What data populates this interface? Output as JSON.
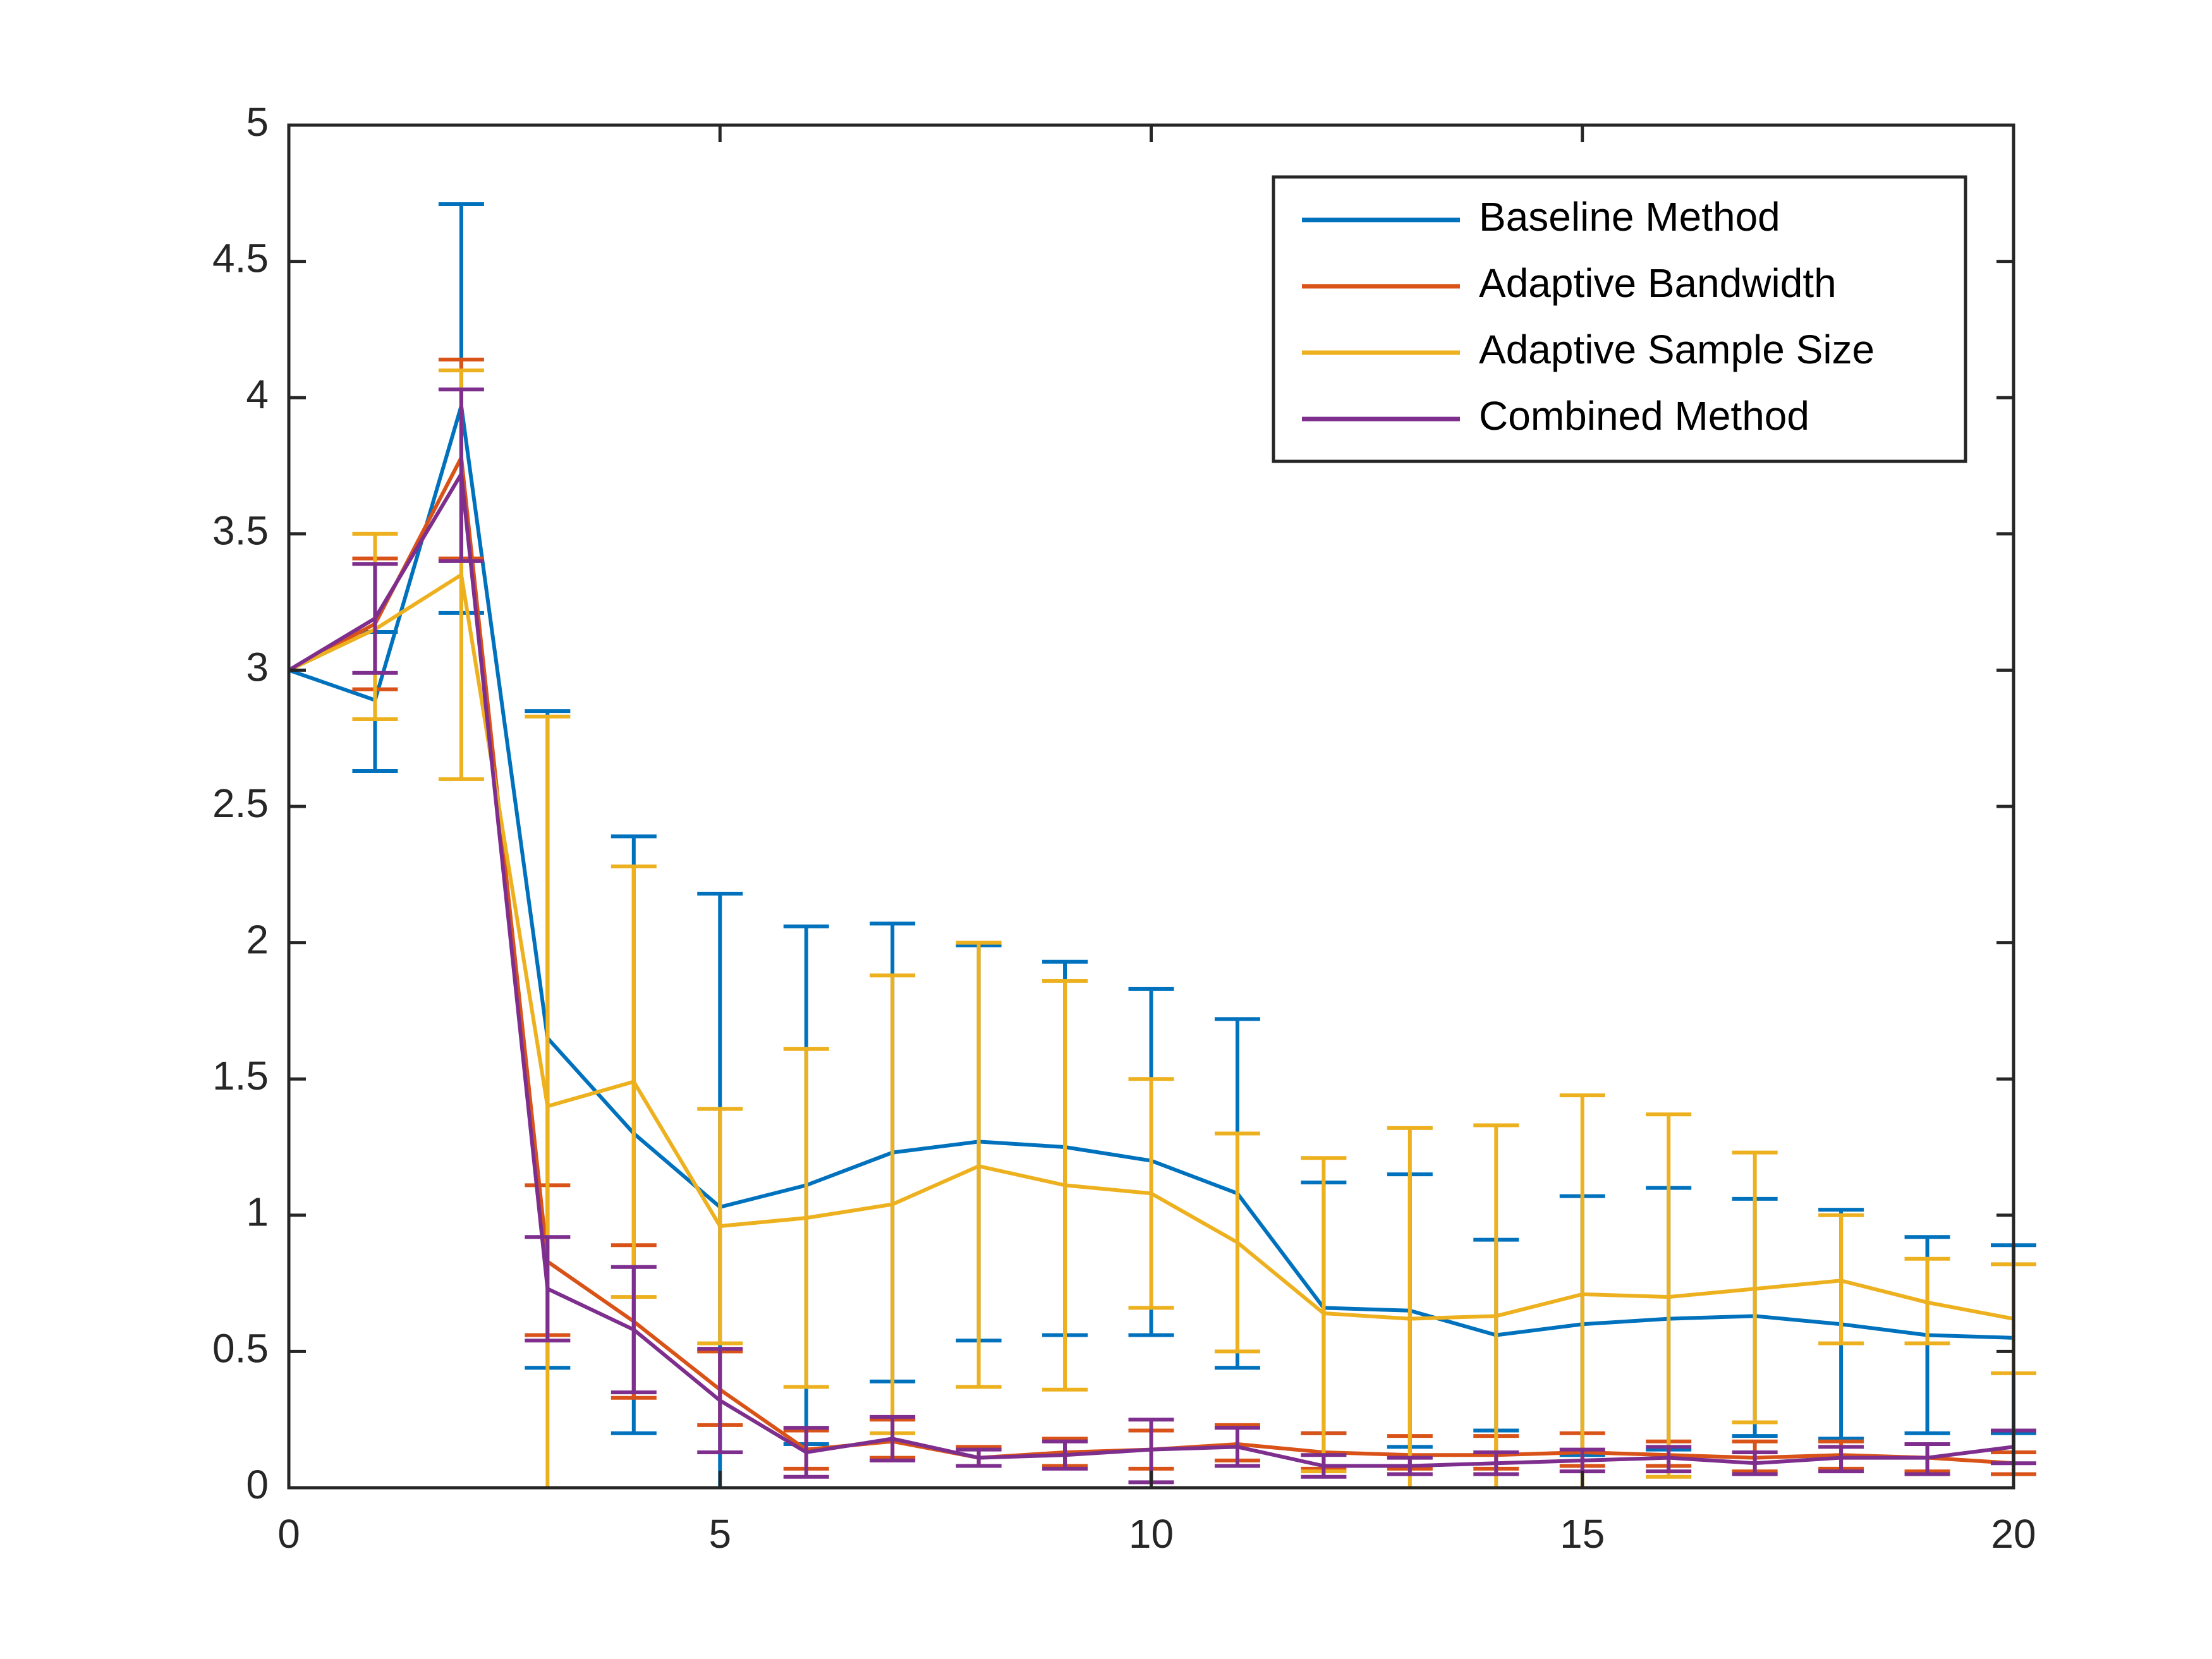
{
  "chart_data": {
    "type": "line",
    "title": "",
    "xlabel": "",
    "ylabel": "",
    "xlim": [
      0,
      20
    ],
    "ylim": [
      0,
      5
    ],
    "xticks": [
      0,
      5,
      10,
      15,
      20
    ],
    "yticks": [
      0,
      0.5,
      1,
      1.5,
      2,
      2.5,
      3,
      3.5,
      4,
      4.5,
      5
    ],
    "xtick_labels": [
      "0",
      "5",
      "10",
      "15",
      "20"
    ],
    "ytick_labels": [
      "0",
      "0.5",
      "1",
      "1.5",
      "2",
      "2.5",
      "3",
      "3.5",
      "4",
      "4.5",
      "5"
    ],
    "grid": false,
    "legend_position": "top-right",
    "x": [
      0,
      1,
      2,
      3,
      4,
      5,
      6,
      7,
      8,
      9,
      10,
      11,
      12,
      13,
      14,
      15,
      16,
      17,
      18,
      19,
      20
    ],
    "series": [
      {
        "name": "Baseline Method",
        "color": "#0072BD",
        "values": [
          3.0,
          2.89,
          3.97,
          1.65,
          1.3,
          1.03,
          1.11,
          1.23,
          1.27,
          1.25,
          1.2,
          1.08,
          0.66,
          0.65,
          0.56,
          0.6,
          0.62,
          0.63,
          0.6,
          0.56,
          0.55
        ],
        "err_low": [
          3.0,
          2.63,
          3.21,
          0.44,
          0.2,
          0.0,
          0.16,
          0.39,
          0.54,
          0.56,
          0.56,
          0.44,
          0.2,
          0.15,
          0.21,
          0.12,
          0.14,
          0.19,
          0.18,
          0.2,
          0.2
        ],
        "err_high": [
          3.0,
          3.14,
          4.71,
          2.85,
          2.39,
          2.18,
          2.06,
          2.07,
          1.99,
          1.93,
          1.83,
          1.72,
          1.12,
          1.15,
          0.91,
          1.07,
          1.1,
          1.06,
          1.02,
          0.92,
          0.89
        ]
      },
      {
        "name": "Adaptive Bandwidth",
        "color": "#D95319",
        "values": [
          3.0,
          3.17,
          3.78,
          0.83,
          0.61,
          0.36,
          0.14,
          0.17,
          0.11,
          0.13,
          0.14,
          0.16,
          0.13,
          0.12,
          0.12,
          0.13,
          0.12,
          0.11,
          0.12,
          0.11,
          0.09
        ],
        "err_low": [
          3.0,
          2.93,
          3.41,
          0.56,
          0.33,
          0.23,
          0.07,
          0.11,
          0.08,
          0.08,
          0.07,
          0.1,
          0.07,
          0.07,
          0.07,
          0.08,
          0.08,
          0.06,
          0.07,
          0.06,
          0.05
        ],
        "err_high": [
          3.0,
          3.41,
          4.14,
          1.11,
          0.89,
          0.5,
          0.21,
          0.25,
          0.15,
          0.18,
          0.21,
          0.23,
          0.2,
          0.19,
          0.19,
          0.2,
          0.17,
          0.17,
          0.17,
          0.16,
          0.13
        ]
      },
      {
        "name": "Adaptive Sample Size",
        "color": "#EDB120",
        "values": [
          3.0,
          3.15,
          3.35,
          1.4,
          1.49,
          0.96,
          0.99,
          1.04,
          1.18,
          1.11,
          1.08,
          0.9,
          0.64,
          0.62,
          0.63,
          0.71,
          0.7,
          0.73,
          0.76,
          0.68,
          0.62
        ],
        "err_low": [
          3.0,
          2.82,
          2.6,
          0.0,
          0.7,
          0.53,
          0.37,
          0.2,
          0.37,
          0.36,
          0.66,
          0.5,
          0.06,
          0.0,
          0.0,
          0.0,
          0.04,
          0.24,
          0.53,
          0.53,
          0.42
        ],
        "err_high": [
          3.0,
          3.5,
          4.1,
          2.83,
          2.28,
          1.39,
          1.61,
          1.88,
          2.0,
          1.86,
          1.5,
          1.3,
          1.21,
          1.32,
          1.33,
          1.44,
          1.37,
          1.23,
          1.0,
          0.84,
          0.82
        ]
      },
      {
        "name": "Combined Method",
        "color": "#7E2F8E",
        "values": [
          3.0,
          3.19,
          3.72,
          0.73,
          0.58,
          0.32,
          0.13,
          0.18,
          0.11,
          0.12,
          0.14,
          0.15,
          0.08,
          0.08,
          0.09,
          0.1,
          0.11,
          0.09,
          0.11,
          0.11,
          0.15
        ],
        "err_low": [
          3.0,
          2.99,
          3.4,
          0.54,
          0.35,
          0.13,
          0.04,
          0.1,
          0.08,
          0.07,
          0.02,
          0.08,
          0.04,
          0.05,
          0.05,
          0.06,
          0.06,
          0.05,
          0.06,
          0.05,
          0.09
        ],
        "err_high": [
          3.0,
          3.39,
          4.03,
          0.92,
          0.81,
          0.51,
          0.22,
          0.26,
          0.14,
          0.17,
          0.25,
          0.22,
          0.12,
          0.11,
          0.13,
          0.14,
          0.15,
          0.13,
          0.15,
          0.16,
          0.21
        ]
      }
    ]
  }
}
